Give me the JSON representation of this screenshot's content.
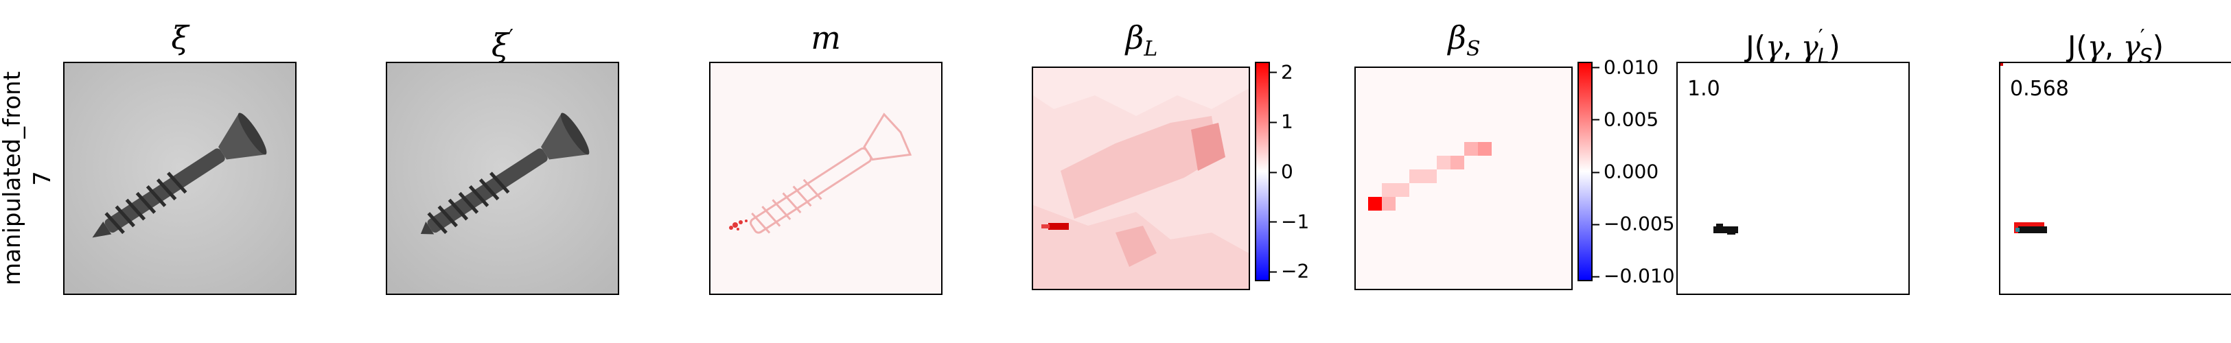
{
  "row": {
    "label_line1": "manipulated_front",
    "label_line2": "7"
  },
  "panels": [
    {
      "symbol": "ξ",
      "sub": "",
      "sup": ""
    },
    {
      "symbol": "ξ",
      "sub": "",
      "sup": "′"
    },
    {
      "symbol": "m",
      "sub": "",
      "sup": ""
    },
    {
      "symbol": "β",
      "sub": "L",
      "sup": ""
    },
    {
      "symbol": "β",
      "sub": "S",
      "sup": ""
    },
    {
      "prefix": "J(",
      "g1": "γ",
      "sep": ", ",
      "g2": "γ",
      "g2sup": "′",
      "g2sub": "L",
      "suffix": ")"
    },
    {
      "prefix": "J(",
      "g1": "γ",
      "sep": ", ",
      "g2": "γ",
      "g2sup": "′",
      "g2sub": "S",
      "suffix": ")"
    }
  ],
  "scores": {
    "jl": "1.0",
    "js": "0.568"
  },
  "colorbars": {
    "beta_l": {
      "ticks": [
        "2",
        "1",
        "0",
        "−1",
        "−2"
      ],
      "values": [
        2,
        1,
        0,
        -1,
        -2
      ],
      "range": [
        -2.2,
        2.2
      ]
    },
    "beta_s": {
      "ticks": [
        "0.010",
        "0.005",
        "0.000",
        "−0.005",
        "−0.010"
      ],
      "values": [
        0.01,
        0.005,
        0.0,
        -0.005,
        -0.01
      ],
      "range": [
        -0.0105,
        0.0105
      ]
    }
  },
  "colors": {
    "cmap_low": "#0000ff",
    "cmap_mid": "#ffffff",
    "cmap_high": "#ff0000",
    "photo_bg": "#c8c8c8",
    "screw": "#3a3a3a"
  },
  "chart_data": {
    "type": "heatmap",
    "title": "",
    "panels": [
      "ξ",
      "ξ′",
      "m",
      "β_L",
      "β_S",
      "J(γ, γ′_L)",
      "J(γ, γ′_S)"
    ],
    "beta_s_grid_highlight": [
      {
        "row": 6,
        "col": 0,
        "value": 0.01
      },
      {
        "row": 6,
        "col": 1,
        "value": 0.003
      },
      {
        "row": 5,
        "col": 1,
        "value": 0.002
      },
      {
        "row": 5,
        "col": 2,
        "value": 0.002
      },
      {
        "row": 4,
        "col": 3,
        "value": 0.002
      },
      {
        "row": 4,
        "col": 4,
        "value": 0.002
      },
      {
        "row": 3,
        "col": 5,
        "value": 0.002
      },
      {
        "row": 3,
        "col": 6,
        "value": 0.003
      },
      {
        "row": 2,
        "col": 7,
        "value": 0.003
      },
      {
        "row": 2,
        "col": 8,
        "value": 0.004
      }
    ],
    "scores": {
      "J_L": 1.0,
      "J_S": 0.568
    }
  }
}
